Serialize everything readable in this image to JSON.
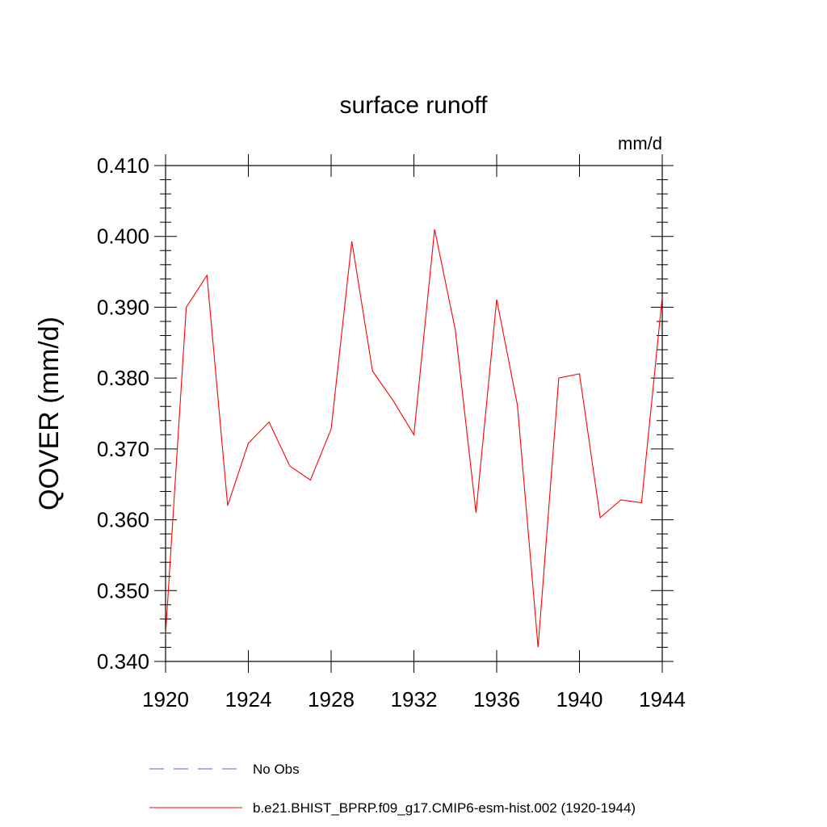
{
  "chart_data": {
    "type": "line",
    "title": "surface runoff",
    "units_label": "mm/d",
    "ylabel": "QOVER  (mm/d)",
    "xlabel": "",
    "xlim": [
      1920,
      1944
    ],
    "ylim": [
      0.34,
      0.41
    ],
    "x_ticks": [
      "1920",
      "1924",
      "1928",
      "1932",
      "1936",
      "1940",
      "1944"
    ],
    "y_ticks": [
      "0.340",
      "0.350",
      "0.360",
      "0.370",
      "0.380",
      "0.390",
      "0.400",
      "0.410"
    ],
    "grid": false,
    "legend_position": "bottom",
    "legend": [
      {
        "label": "No Obs",
        "color": "#6a5acd",
        "style": "dashed"
      },
      {
        "label": "b.e21.BHIST_BPRP.f09_g17.CMIP6-esm-hist.002 (1920-1944)",
        "color": "#ff0000",
        "style": "solid"
      }
    ],
    "series": [
      {
        "name": "b.e21.BHIST_BPRP.f09_g17.CMIP6-esm-hist.002 (1920-1944)",
        "color": "#ff0000",
        "x": [
          1920,
          1921,
          1922,
          1923,
          1924,
          1925,
          1926,
          1927,
          1928,
          1929,
          1930,
          1931,
          1932,
          1933,
          1934,
          1935,
          1936,
          1937,
          1938,
          1939,
          1940,
          1941,
          1942,
          1943,
          1944
        ],
        "values": [
          0.3438,
          0.39,
          0.3945,
          0.362,
          0.3708,
          0.3738,
          0.3676,
          0.3656,
          0.3728,
          0.3993,
          0.381,
          0.3768,
          0.372,
          0.401,
          0.3868,
          0.361,
          0.3911,
          0.3762,
          0.342,
          0.38,
          0.3806,
          0.3603,
          0.3628,
          0.3624,
          0.3915
        ]
      }
    ]
  }
}
